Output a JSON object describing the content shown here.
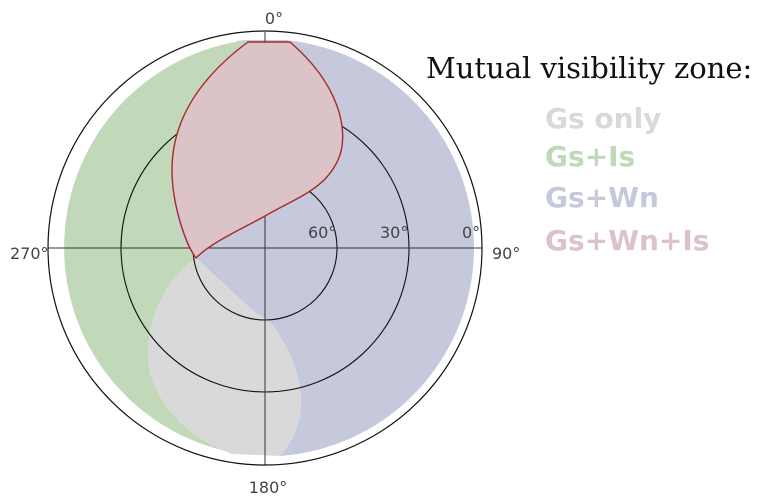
{
  "chart_data": {
    "type": "polar-area",
    "projection": "azimuth-elevation",
    "azimuth_tick_labels": [
      "0°",
      "90°",
      "180°",
      "270°"
    ],
    "elevation_tick_labels": [
      "60°",
      "30°",
      "0°"
    ],
    "elevation_rings": [
      60,
      30,
      0
    ],
    "legend_title": "Mutual visibility zone:",
    "legend_position": "right",
    "grid": true,
    "series": [
      {
        "name": "Gs only",
        "color": "#d9d9d9"
      },
      {
        "name": "Gs+Is",
        "color": "#c1d9b8"
      },
      {
        "name": "Gs+Wn",
        "color": "#c6c9dc"
      },
      {
        "name": "Gs+Wn+Is",
        "color": "#dcc3c8",
        "outline_color": "#a52a2a"
      }
    ]
  }
}
